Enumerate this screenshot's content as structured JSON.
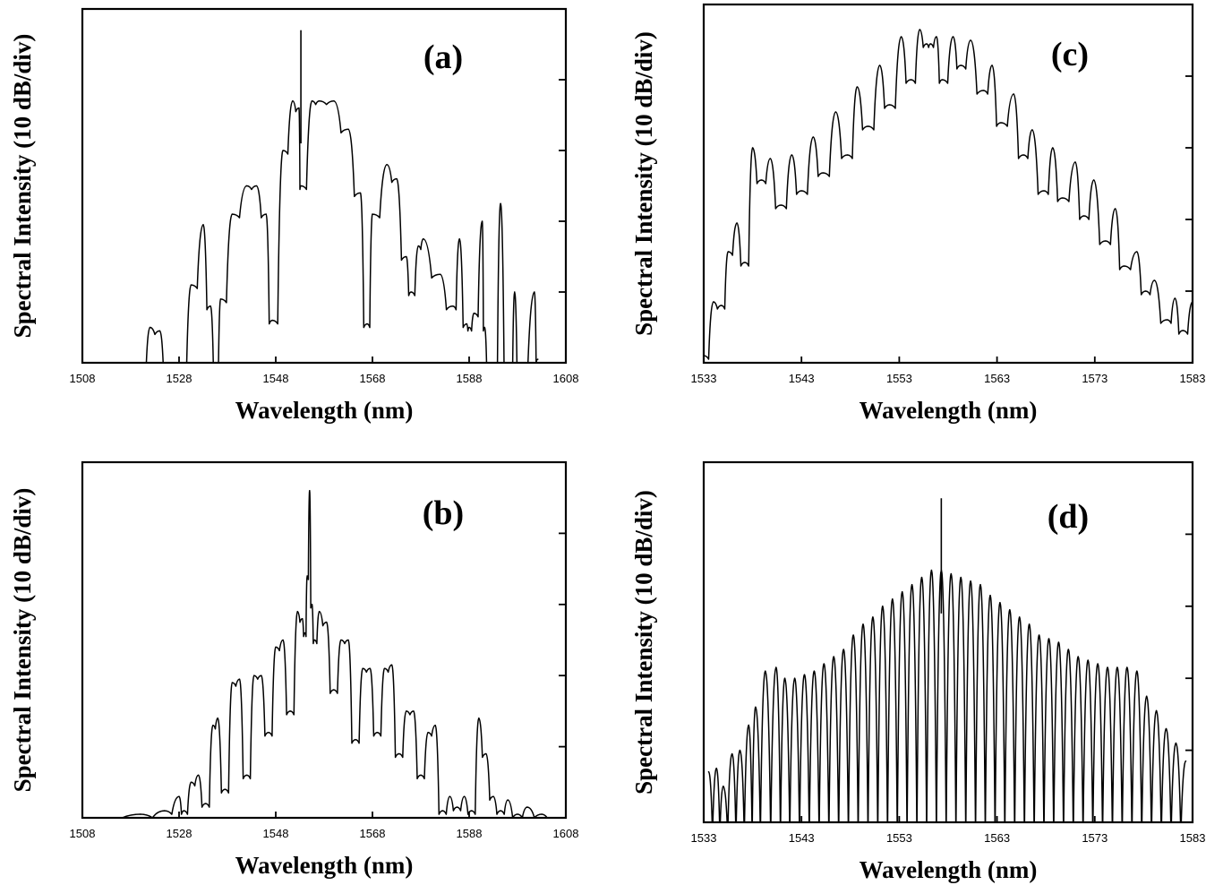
{
  "chart_data": [
    {
      "panel_label": "(a)",
      "type": "line",
      "xlabel": "Wavelength (nm)",
      "ylabel": "Spectral Intensity (10 dB/div)",
      "xlim": [
        1508,
        1608
      ],
      "x_ticks": [
        "1508",
        "1528",
        "1548",
        "1568",
        "1588",
        "1608"
      ],
      "ylim_divisions": [
        0,
        5
      ],
      "grid": false,
      "series": [
        {
          "name": "",
          "x": [
            1520.4,
            1522.0,
            1524.0,
            1525.5,
            1526.5,
            1528.5,
            1530.5,
            1533.0,
            1534.5,
            1535.7,
            1536.6,
            1539.0,
            1542.0,
            1544.0,
            1546.0,
            1547.3,
            1549.5,
            1551.5,
            1552.8,
            1553.2,
            1555.5,
            1557.0,
            1560.0,
            1563.0,
            1565.5,
            1566.9,
            1568.0,
            1571.0,
            1573.0,
            1575.0,
            1576.0,
            1577.5,
            1578.5,
            1582.0,
            1584.6,
            1586.0,
            1587.5,
            1588.0,
            1589.0,
            1590.7,
            1591.2,
            1592.2,
            1593.2,
            1594.5,
            1596.0,
            1596.6,
            1597.4,
            1598.5,
            1601.5,
            1602.2
          ],
          "values": [
            0.0,
            0.5,
            0.45,
            0.0,
            -0.3,
            -0.2,
            1.1,
            1.95,
            0.8,
            0.0,
            0.9,
            2.1,
            2.5,
            2.5,
            2.1,
            0.6,
            3.0,
            3.7,
            3.6,
            2.5,
            3.7,
            3.7,
            3.7,
            3.3,
            2.4,
            0.55,
            2.1,
            2.8,
            2.6,
            1.5,
            1.0,
            1.65,
            1.75,
            1.25,
            0.8,
            1.75,
            0.55,
            0.5,
            0.7,
            2.0,
            0.5,
            -0.3,
            0.0,
            2.25,
            -0.3,
            0.0,
            1.0,
            -0.3,
            1.0,
            0.05
          ]
        }
      ],
      "annotations": [
        {
          "x": 1553.2,
          "y": 4.7,
          "text": "spike"
        }
      ]
    },
    {
      "panel_label": "(b)",
      "type": "line",
      "xlabel": "Wavelength (nm)",
      "ylabel": "Spectral Intensity (10 dB/div)",
      "xlim": [
        1508,
        1608
      ],
      "x_ticks": [
        "1508",
        "1528",
        "1548",
        "1568",
        "1588",
        "1608"
      ],
      "ylim_divisions": [
        0,
        5
      ],
      "grid": false,
      "series": [
        {
          "name": "",
          "x": [
            1510,
            1520,
            1525,
            1528.0,
            1529.0,
            1530.5,
            1532.0,
            1533.5,
            1535.0,
            1536.0,
            1537.5,
            1539.0,
            1540.5,
            1542.0,
            1543.5,
            1545.0,
            1546.5,
            1548.0,
            1549.5,
            1551.0,
            1552.5,
            1553.5,
            1554.0,
            1554.5,
            1555.0,
            1555.5,
            1556.0,
            1557.0,
            1558.5,
            1560.0,
            1561.5,
            1563.0,
            1564.5,
            1566.0,
            1567.5,
            1569.0,
            1570.5,
            1572.0,
            1573.5,
            1575.0,
            1576.5,
            1578.0,
            1579.5,
            1581.0,
            1582.5,
            1584.0,
            1585.5,
            1587.0,
            1588.5,
            1590.0,
            1591.5,
            1593.0,
            1594.5,
            1596.0,
            1598.0,
            1600.0,
            1603.0,
            1606.0
          ],
          "values": [
            0.0,
            0.05,
            0.1,
            0.3,
            0.1,
            0.5,
            0.6,
            0.2,
            1.3,
            1.4,
            0.4,
            1.9,
            1.95,
            0.6,
            2.0,
            2.0,
            1.2,
            2.4,
            2.5,
            1.5,
            2.9,
            2.8,
            2.6,
            3.4,
            4.6,
            3.0,
            2.5,
            2.9,
            2.75,
            1.8,
            2.5,
            2.5,
            1.1,
            2.1,
            2.1,
            1.2,
            2.1,
            2.15,
            0.9,
            1.5,
            1.5,
            0.6,
            1.2,
            1.3,
            0.1,
            0.3,
            0.15,
            0.3,
            0.1,
            1.4,
            0.9,
            0.3,
            0.1,
            0.25,
            0.05,
            0.15,
            0.05,
            0.0
          ]
        }
      ]
    },
    {
      "panel_label": "(c)",
      "type": "line",
      "xlabel": "Wavelength (nm)",
      "ylabel": "Spectral Intensity (10 dB/div)",
      "xlim": [
        1533,
        1583
      ],
      "x_ticks": [
        "1533",
        "1543",
        "1553",
        "1563",
        "1573",
        "1583"
      ],
      "ylim_divisions": [
        0,
        5
      ],
      "grid": false,
      "series": [
        {
          "name": "",
          "x": [
            1533.0,
            1534.0,
            1534.8,
            1535.5,
            1536.4,
            1537.2,
            1538.0,
            1538.9,
            1539.8,
            1540.9,
            1542.0,
            1543.0,
            1544.2,
            1545.2,
            1546.5,
            1547.7,
            1548.7,
            1549.8,
            1551.0,
            1552.0,
            1553.2,
            1554.2,
            1555.1,
            1555.8,
            1556.2,
            1556.8,
            1557.4,
            1558.5,
            1559.3,
            1560.3,
            1561.6,
            1562.5,
            1563.4,
            1564.7,
            1565.7,
            1566.6,
            1567.8,
            1568.7,
            1569.7,
            1571.0,
            1571.9,
            1572.9,
            1574.1,
            1575.1,
            1576.0,
            1577.3,
            1578.2,
            1579.1,
            1580.4,
            1581.2,
            1582.0,
            1583.0
          ],
          "values": [
            0.1,
            0.85,
            0.8,
            1.55,
            1.95,
            1.4,
            3.0,
            2.55,
            2.85,
            2.2,
            2.9,
            2.4,
            3.15,
            2.65,
            3.5,
            2.9,
            3.85,
            3.3,
            4.15,
            3.6,
            4.55,
            3.95,
            4.65,
            4.45,
            4.45,
            4.55,
            3.95,
            4.55,
            4.15,
            4.5,
            3.8,
            4.15,
            3.35,
            3.75,
            2.9,
            3.25,
            2.4,
            3.0,
            2.3,
            2.8,
            2.05,
            2.55,
            1.7,
            2.15,
            1.35,
            1.55,
            1.0,
            1.15,
            0.6,
            0.9,
            0.45,
            0.85
          ]
        }
      ]
    },
    {
      "panel_label": "(d)",
      "type": "line",
      "xlabel": "Wavelength (nm)",
      "ylabel": "Spectral Intensity (10 dB/div)",
      "xlim": [
        1533,
        1583
      ],
      "x_ticks": [
        "1533",
        "1543",
        "1553",
        "1563",
        "1573",
        "1583"
      ],
      "ylim_divisions": [
        0,
        5
      ],
      "grid": false,
      "series": [
        {
          "name": "",
          "x": [
            1533.5,
            1534.3,
            1535.0,
            1535.9,
            1536.7,
            1537.6,
            1538.3,
            1539.3,
            1540.4,
            1541.3,
            1542.3,
            1543.3,
            1544.3,
            1545.3,
            1546.3,
            1547.3,
            1548.3,
            1549.3,
            1550.3,
            1551.3,
            1552.3,
            1553.3,
            1554.3,
            1555.3,
            1556.3,
            1557.3,
            1558.3,
            1559.3,
            1560.3,
            1561.3,
            1562.3,
            1563.3,
            1564.3,
            1565.3,
            1566.3,
            1567.3,
            1568.3,
            1569.3,
            1570.3,
            1571.3,
            1572.3,
            1573.3,
            1574.3,
            1575.3,
            1576.3,
            1577.3,
            1578.3,
            1579.3,
            1580.3,
            1581.3,
            1582.3
          ],
          "values": [
            0.7,
            0.75,
            0.5,
            0.95,
            1.0,
            1.35,
            1.6,
            2.1,
            2.15,
            2.0,
            2.0,
            2.05,
            2.1,
            2.2,
            2.3,
            2.4,
            2.6,
            2.75,
            2.85,
            3.0,
            3.1,
            3.2,
            3.3,
            3.4,
            3.5,
            3.5,
            3.45,
            3.4,
            3.35,
            3.3,
            3.15,
            3.05,
            2.95,
            2.85,
            2.75,
            2.6,
            2.55,
            2.5,
            2.4,
            2.3,
            2.25,
            2.2,
            2.15,
            2.15,
            2.15,
            2.1,
            1.75,
            1.55,
            1.3,
            1.1,
            0.85
          ]
        }
      ],
      "annotations": [
        {
          "x": 1557.3,
          "y": 4.5,
          "text": "spike"
        }
      ]
    }
  ]
}
